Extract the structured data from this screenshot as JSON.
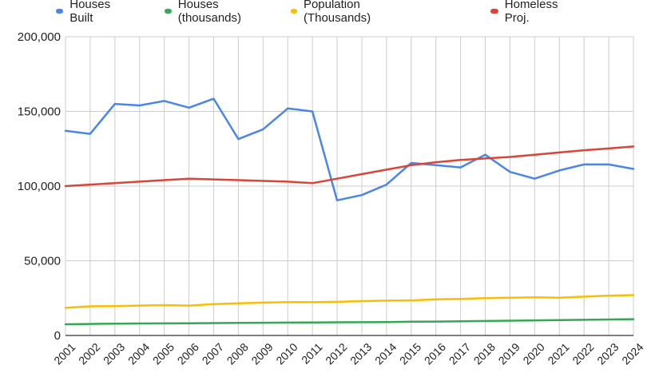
{
  "chart_data": {
    "type": "line",
    "title": "",
    "xlabel": "",
    "ylabel": "",
    "ylim": [
      0,
      200000
    ],
    "yticks": [
      "0",
      "50,000",
      "100,000",
      "150,000",
      "200,000"
    ],
    "ytick_values": [
      0,
      50000,
      100000,
      150000,
      200000
    ],
    "grid": true,
    "legend_position": "top",
    "x": [
      "2001",
      "2002",
      "2003",
      "2004",
      "2005",
      "2006",
      "2007",
      "2008",
      "2009",
      "2010",
      "2011",
      "2012",
      "2013",
      "2014",
      "2015",
      "2016",
      "2017",
      "2018",
      "2019",
      "2020",
      "2021",
      "2022",
      "2023",
      "2024"
    ],
    "series": [
      {
        "name": "Houses Built",
        "color": "#4a86e8",
        "values": [
          137000,
          135000,
          155000,
          154000,
          157000,
          152500,
          158500,
          131500,
          138000,
          152000,
          150000,
          90500,
          94000,
          101000,
          115500,
          114000,
          112500,
          121000,
          109500,
          105000,
          110500,
          114500,
          114500,
          111500
        ]
      },
      {
        "name": "Houses (thousands)",
        "color": "#34a853",
        "values": [
          7500,
          7700,
          7900,
          8000,
          8100,
          8200,
          8300,
          8400,
          8500,
          8600,
          8700,
          8800,
          8900,
          9000,
          9200,
          9300,
          9500,
          9700,
          9900,
          10100,
          10300,
          10500,
          10700,
          10900
        ]
      },
      {
        "name": "Population (Thousands)",
        "color": "#fbbc04",
        "values": [
          18500,
          19500,
          19700,
          20000,
          20300,
          20000,
          21000,
          21500,
          22000,
          22300,
          22300,
          22500,
          23000,
          23300,
          23500,
          24200,
          24500,
          25000,
          25300,
          25500,
          25300,
          26000,
          26700,
          27000
        ]
      },
      {
        "name": "Homeless Proj.",
        "color": "#db4437",
        "values": [
          100000,
          101000,
          102000,
          103000,
          104000,
          105000,
          104500,
          104000,
          103500,
          103000,
          102000,
          105000,
          108000,
          111000,
          114000,
          116000,
          117500,
          118500,
          119500,
          121000,
          122500,
          124000,
          125200,
          126500
        ]
      }
    ]
  }
}
